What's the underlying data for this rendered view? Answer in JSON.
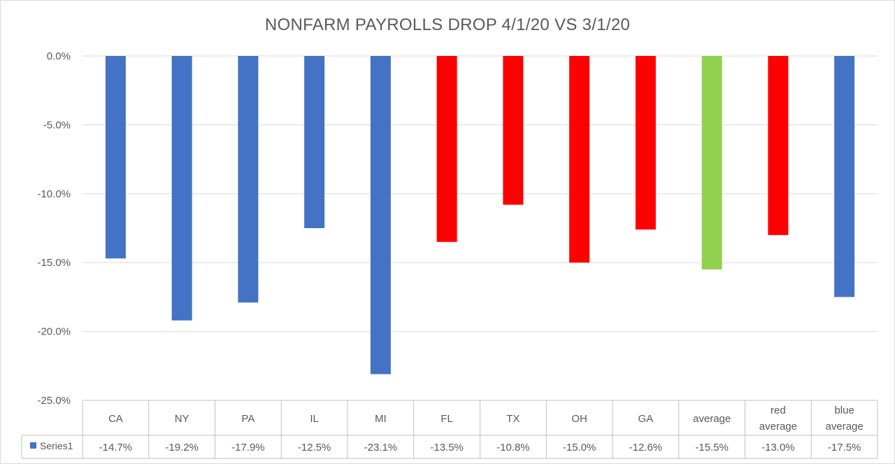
{
  "chart_data": {
    "type": "bar",
    "title": "NONFARM PAYROLLS DROP 4/1/20 VS 3/1/20",
    "xlabel": "",
    "ylabel": "",
    "ylim": [
      -25,
      0
    ],
    "yticks": [
      0,
      -5,
      -10,
      -15,
      -20,
      -25
    ],
    "ytick_labels": [
      "0.0%",
      "-5.0%",
      "-10.0%",
      "-15.0%",
      "-20.0%",
      "-25.0%"
    ],
    "categories": [
      "CA",
      "NY",
      "PA",
      "IL",
      "MI",
      "FL",
      "TX",
      "OH",
      "GA",
      "average",
      "red average",
      "blue average"
    ],
    "series": [
      {
        "name": "Series1",
        "values": [
          -14.7,
          -19.2,
          -17.9,
          -12.5,
          -23.1,
          -13.5,
          -10.8,
          -15.0,
          -12.6,
          -15.5,
          -13.0,
          -17.5
        ],
        "value_labels": [
          "-14.7%",
          "-19.2%",
          "-17.9%",
          "-12.5%",
          "-23.1%",
          "-13.5%",
          "-10.8%",
          "-15.0%",
          "-12.6%",
          "-15.5%",
          "-13.0%",
          "-17.5%"
        ],
        "colors": [
          "#4472C4",
          "#4472C4",
          "#4472C4",
          "#4472C4",
          "#4472C4",
          "#FF0000",
          "#FF0000",
          "#FF0000",
          "#FF0000",
          "#92D050",
          "#FF0000",
          "#4472C4"
        ]
      }
    ],
    "legend": {
      "position": "data-table",
      "entries": [
        "Series1"
      ],
      "color": "#4472C4"
    },
    "grid": true
  },
  "colors": {
    "grid": "#d9d9d9",
    "text": "#595959",
    "table_border": "#bfbfbf"
  }
}
